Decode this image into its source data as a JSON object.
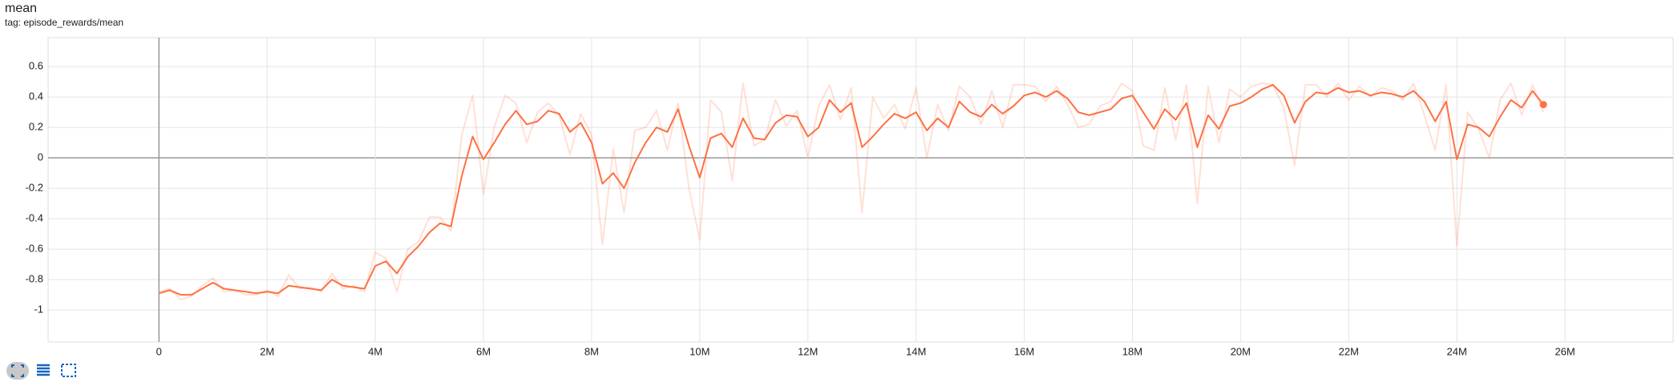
{
  "chart_data": {
    "type": "line",
    "title": "mean",
    "subtitle": "tag: episode_rewards/mean",
    "x": [
      0,
      200000,
      400000,
      600000,
      800000,
      1000000,
      1200000,
      1400000,
      1600000,
      1800000,
      2000000,
      2200000,
      2400000,
      2600000,
      2800000,
      3000000,
      3200000,
      3400000,
      3600000,
      3800000,
      4000000,
      4200000,
      4400000,
      4600000,
      4800000,
      5000000,
      5200000,
      5400000,
      5600000,
      5800000,
      6000000,
      6200000,
      6400000,
      6600000,
      6800000,
      7000000,
      7200000,
      7400000,
      7600000,
      7800000,
      8000000,
      8200000,
      8400000,
      8600000,
      8800000,
      9000000,
      9200000,
      9400000,
      9600000,
      9800000,
      10000000,
      10200000,
      10400000,
      10600000,
      10800000,
      11000000,
      11200000,
      11400000,
      11600000,
      11800000,
      12000000,
      12200000,
      12400000,
      12600000,
      12800000,
      13000000,
      13200000,
      13400000,
      13600000,
      13800000,
      14000000,
      14200000,
      14400000,
      14600000,
      14800000,
      15000000,
      15200000,
      15400000,
      15600000,
      15800000,
      16000000,
      16200000,
      16400000,
      16600000,
      16800000,
      17000000,
      17200000,
      17400000,
      17600000,
      17800000,
      18000000,
      18200000,
      18400000,
      18600000,
      18800000,
      19000000,
      19200000,
      19400000,
      19600000,
      19800000,
      20000000,
      20200000,
      20400000,
      20600000,
      20800000,
      21000000,
      21200000,
      21400000,
      21600000,
      21800000,
      22000000,
      22200000,
      22400000,
      22600000,
      22800000,
      23000000,
      23200000,
      23400000,
      23600000,
      23800000,
      24000000,
      24200000,
      24400000,
      24600000,
      24800000,
      25000000,
      25200000,
      25400000,
      25600000
    ],
    "series": [
      {
        "color": "#ff7043",
        "opacity": 0.22,
        "values": [
          -0.88,
          -0.86,
          -0.93,
          -0.91,
          -0.84,
          -0.79,
          -0.88,
          -0.87,
          -0.9,
          -0.9,
          -0.87,
          -0.91,
          -0.77,
          -0.86,
          -0.85,
          -0.88,
          -0.76,
          -0.86,
          -0.84,
          -0.88,
          -0.62,
          -0.66,
          -0.88,
          -0.6,
          -0.55,
          -0.39,
          -0.39,
          -0.48,
          0.15,
          0.41,
          -0.24,
          0.2,
          0.41,
          0.36,
          0.1,
          0.3,
          0.36,
          0.28,
          0.02,
          0.29,
          0.15,
          -0.57,
          0.06,
          -0.36,
          0.18,
          0.2,
          0.31,
          0.05,
          0.36,
          -0.2,
          -0.54,
          0.38,
          0.3,
          -0.15,
          0.49,
          0.08,
          0.12,
          0.38,
          0.21,
          0.31,
          0.0,
          0.34,
          0.48,
          0.25,
          0.46,
          -0.36,
          0.4,
          0.26,
          0.35,
          0.19,
          0.46,
          0.0,
          0.35,
          0.18,
          0.47,
          0.4,
          0.22,
          0.44,
          0.2,
          0.48,
          0.48,
          0.47,
          0.37,
          0.47,
          0.35,
          0.2,
          0.22,
          0.34,
          0.37,
          0.49,
          0.44,
          0.08,
          0.05,
          0.46,
          0.12,
          0.48,
          -0.3,
          0.47,
          0.1,
          0.45,
          0.4,
          0.47,
          0.49,
          0.48,
          0.33,
          -0.05,
          0.48,
          0.48,
          0.4,
          0.49,
          0.38,
          0.47,
          0.4,
          0.46,
          0.44,
          0.38,
          0.49,
          0.28,
          0.05,
          0.48,
          -0.58,
          0.3,
          0.19,
          0.0,
          0.38,
          0.49,
          0.28,
          0.48,
          0.3
        ]
      },
      {
        "color": "#ff7043",
        "opacity": 1,
        "values": [
          -0.89,
          -0.87,
          -0.9,
          -0.9,
          -0.86,
          -0.82,
          -0.86,
          -0.87,
          -0.88,
          -0.89,
          -0.88,
          -0.89,
          -0.84,
          -0.85,
          -0.86,
          -0.87,
          -0.8,
          -0.84,
          -0.85,
          -0.86,
          -0.71,
          -0.68,
          -0.76,
          -0.65,
          -0.58,
          -0.49,
          -0.43,
          -0.45,
          -0.12,
          0.14,
          -0.01,
          0.1,
          0.22,
          0.31,
          0.22,
          0.24,
          0.31,
          0.29,
          0.17,
          0.23,
          0.1,
          -0.17,
          -0.1,
          -0.2,
          -0.03,
          0.1,
          0.2,
          0.17,
          0.32,
          0.08,
          -0.13,
          0.13,
          0.16,
          0.07,
          0.26,
          0.13,
          0.12,
          0.23,
          0.28,
          0.27,
          0.14,
          0.2,
          0.38,
          0.3,
          0.36,
          0.07,
          0.14,
          0.22,
          0.29,
          0.26,
          0.3,
          0.18,
          0.26,
          0.2,
          0.37,
          0.3,
          0.27,
          0.35,
          0.29,
          0.34,
          0.41,
          0.43,
          0.4,
          0.44,
          0.39,
          0.3,
          0.28,
          0.3,
          0.32,
          0.39,
          0.41,
          0.3,
          0.19,
          0.32,
          0.25,
          0.36,
          0.07,
          0.28,
          0.19,
          0.34,
          0.36,
          0.4,
          0.45,
          0.48,
          0.41,
          0.23,
          0.37,
          0.43,
          0.42,
          0.46,
          0.43,
          0.44,
          0.41,
          0.43,
          0.42,
          0.4,
          0.44,
          0.37,
          0.24,
          0.37,
          -0.01,
          0.22,
          0.2,
          0.14,
          0.27,
          0.38,
          0.33,
          0.44,
          0.35
        ]
      }
    ],
    "xlim": [
      -2050000,
      28000000
    ],
    "ylim": [
      -1.21,
      0.79
    ],
    "xticks": [
      0,
      {
        "value": 2000000,
        "label": "2M"
      },
      {
        "value": 4000000,
        "label": "4M"
      },
      {
        "value": 6000000,
        "label": "6M"
      },
      {
        "value": 8000000,
        "label": "8M"
      },
      {
        "value": 10000000,
        "label": "10M"
      },
      {
        "value": 12000000,
        "label": "12M"
      },
      {
        "value": 14000000,
        "label": "14M"
      },
      {
        "value": 16000000,
        "label": "16M"
      },
      {
        "value": 18000000,
        "label": "18M"
      },
      {
        "value": 20000000,
        "label": "20M"
      },
      {
        "value": 22000000,
        "label": "22M"
      },
      {
        "value": 24000000,
        "label": "24M"
      },
      {
        "value": 26000000,
        "label": "26M"
      }
    ],
    "yticks": [
      0.6,
      0.4,
      0.2,
      0,
      -0.2,
      -0.4,
      -0.6,
      -0.8,
      -1
    ],
    "grid": true
  }
}
